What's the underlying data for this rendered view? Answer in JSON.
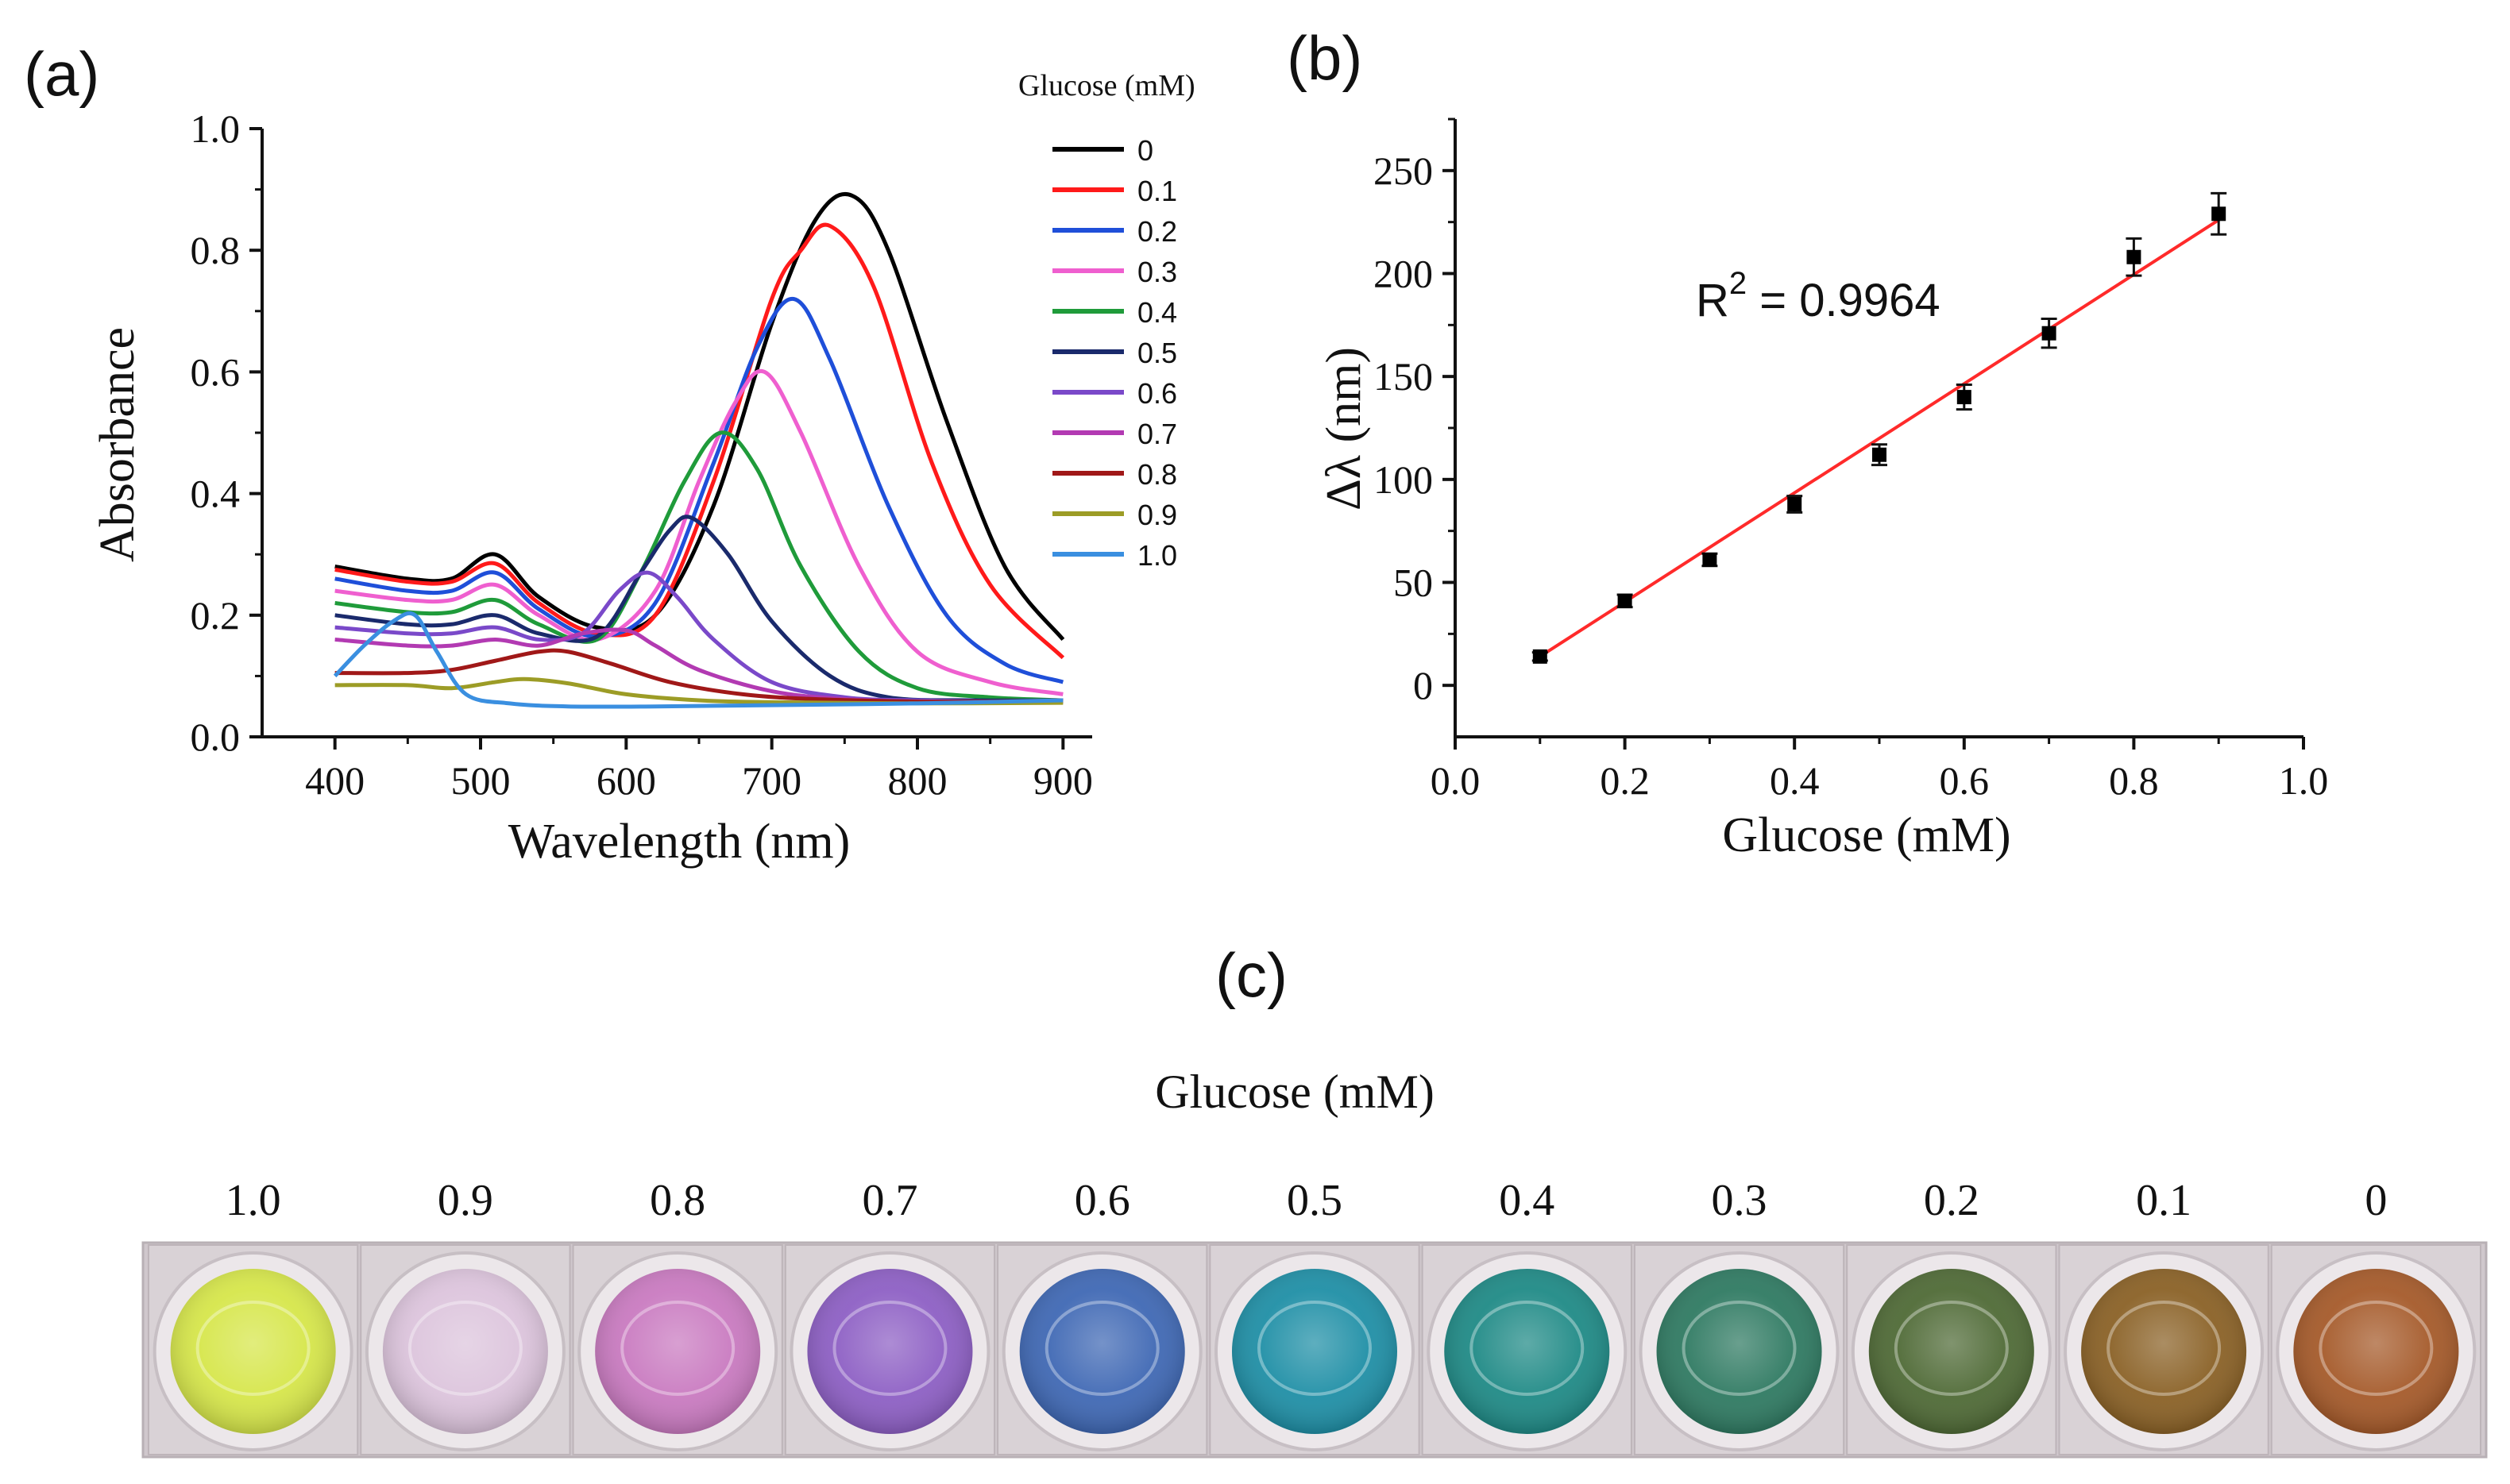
{
  "panel_labels": {
    "a": "(a)",
    "b": "(b)",
    "c": "(c)"
  },
  "chart_data": [
    {
      "type": "line",
      "title": "",
      "xlabel": "Wavelength (nm)",
      "ylabel": "Absorbance",
      "xlim": [
        350,
        920
      ],
      "ylim": [
        0,
        1.0
      ],
      "xticks": [
        400,
        500,
        600,
        700,
        800,
        900
      ],
      "yticks": [
        0.0,
        0.2,
        0.4,
        0.6,
        0.8,
        1.0
      ],
      "xtick_labels": [
        "400",
        "500",
        "600",
        "700",
        "800",
        "900"
      ],
      "ytick_labels": [
        "0.0",
        "0.2",
        "0.4",
        "0.6",
        "0.8",
        "1.0"
      ],
      "legend_title": "Glucose (mM)",
      "legend_position": "top-right",
      "grid": false,
      "series": [
        {
          "name": "0",
          "color": "#000000",
          "x": [
            400,
            450,
            480,
            510,
            540,
            580,
            620,
            660,
            700,
            730,
            755,
            780,
            820,
            860,
            900
          ],
          "y": [
            0.28,
            0.26,
            0.26,
            0.3,
            0.23,
            0.18,
            0.2,
            0.38,
            0.68,
            0.85,
            0.89,
            0.8,
            0.52,
            0.28,
            0.16
          ]
        },
        {
          "name": "0.1",
          "color": "#ff1a1a",
          "x": [
            400,
            450,
            480,
            510,
            540,
            580,
            620,
            660,
            700,
            720,
            740,
            770,
            810,
            850,
            900
          ],
          "y": [
            0.275,
            0.255,
            0.255,
            0.285,
            0.22,
            0.17,
            0.2,
            0.42,
            0.72,
            0.8,
            0.84,
            0.74,
            0.45,
            0.25,
            0.13
          ]
        },
        {
          "name": "0.2",
          "color": "#1f4fd9",
          "x": [
            400,
            450,
            480,
            510,
            540,
            580,
            620,
            660,
            690,
            715,
            740,
            780,
            820,
            860,
            900
          ],
          "y": [
            0.26,
            0.24,
            0.24,
            0.27,
            0.21,
            0.165,
            0.22,
            0.45,
            0.64,
            0.72,
            0.62,
            0.38,
            0.2,
            0.12,
            0.09
          ]
        },
        {
          "name": "0.3",
          "color": "#ef5fcf",
          "x": [
            400,
            450,
            480,
            510,
            540,
            580,
            620,
            650,
            675,
            695,
            720,
            760,
            800,
            850,
            900
          ],
          "y": [
            0.24,
            0.225,
            0.225,
            0.25,
            0.2,
            0.16,
            0.24,
            0.42,
            0.55,
            0.6,
            0.5,
            0.28,
            0.14,
            0.09,
            0.07
          ]
        },
        {
          "name": "0.4",
          "color": "#1f9b3a",
          "x": [
            400,
            450,
            480,
            510,
            540,
            580,
            610,
            640,
            665,
            690,
            720,
            760,
            800,
            850,
            900
          ],
          "y": [
            0.22,
            0.205,
            0.205,
            0.225,
            0.185,
            0.16,
            0.27,
            0.42,
            0.5,
            0.44,
            0.28,
            0.14,
            0.08,
            0.065,
            0.06
          ]
        },
        {
          "name": "0.5",
          "color": "#1a2a6c",
          "x": [
            400,
            450,
            480,
            510,
            540,
            580,
            610,
            630,
            645,
            670,
            700,
            740,
            780,
            840,
            900
          ],
          "y": [
            0.2,
            0.185,
            0.185,
            0.2,
            0.17,
            0.165,
            0.27,
            0.34,
            0.36,
            0.3,
            0.19,
            0.1,
            0.065,
            0.06,
            0.06
          ]
        },
        {
          "name": "0.6",
          "color": "#7a49c9",
          "x": [
            400,
            450,
            480,
            510,
            540,
            570,
            595,
            615,
            635,
            660,
            700,
            750,
            800,
            850,
            900
          ],
          "y": [
            0.18,
            0.17,
            0.17,
            0.18,
            0.16,
            0.17,
            0.24,
            0.27,
            0.23,
            0.16,
            0.09,
            0.065,
            0.06,
            0.058,
            0.058
          ]
        },
        {
          "name": "0.7",
          "color": "#b23ab2",
          "x": [
            400,
            450,
            480,
            510,
            540,
            570,
            600,
            620,
            650,
            700,
            750,
            800,
            850,
            900
          ],
          "y": [
            0.16,
            0.15,
            0.15,
            0.16,
            0.15,
            0.17,
            0.175,
            0.15,
            0.11,
            0.075,
            0.062,
            0.058,
            0.058,
            0.058
          ]
        },
        {
          "name": "0.8",
          "color": "#a01818",
          "x": [
            400,
            450,
            480,
            510,
            540,
            560,
            590,
            630,
            680,
            730,
            800,
            850,
            900
          ],
          "y": [
            0.105,
            0.105,
            0.11,
            0.125,
            0.14,
            0.14,
            0.12,
            0.09,
            0.07,
            0.062,
            0.058,
            0.058,
            0.06
          ]
        },
        {
          "name": "0.9",
          "color": "#9c9c26",
          "x": [
            400,
            450,
            480,
            510,
            530,
            560,
            600,
            650,
            700,
            800,
            900
          ],
          "y": [
            0.085,
            0.085,
            0.08,
            0.09,
            0.095,
            0.088,
            0.07,
            0.06,
            0.057,
            0.055,
            0.056
          ]
        },
        {
          "name": "1.0",
          "color": "#3a8fe0",
          "x": [
            400,
            420,
            440,
            455,
            470,
            490,
            520,
            560,
            620,
            700,
            800,
            900
          ],
          "y": [
            0.1,
            0.15,
            0.19,
            0.2,
            0.14,
            0.07,
            0.055,
            0.05,
            0.05,
            0.052,
            0.055,
            0.06
          ]
        }
      ]
    },
    {
      "type": "scatter",
      "title": "",
      "xlabel": "Glucose (mM)",
      "ylabel": "Δλ (nm)",
      "xlim": [
        0.0,
        1.0
      ],
      "ylim": [
        -25,
        275
      ],
      "xticks": [
        0.0,
        0.2,
        0.4,
        0.6,
        0.8,
        1.0
      ],
      "yticks": [
        0,
        50,
        100,
        150,
        200,
        250
      ],
      "xtick_labels": [
        "0.0",
        "0.2",
        "0.4",
        "0.6",
        "0.8",
        "1.0"
      ],
      "ytick_labels": [
        "0",
        "50",
        "100",
        "150",
        "200",
        "250"
      ],
      "annotation": {
        "base": "R",
        "sup": "2",
        "rest": " = 0.9964"
      },
      "grid": false,
      "points": {
        "x": [
          0.1,
          0.2,
          0.3,
          0.4,
          0.5,
          0.6,
          0.7,
          0.8,
          0.9
        ],
        "y": [
          14,
          41,
          61,
          88,
          112,
          140,
          171,
          208,
          229
        ],
        "err": [
          2,
          3,
          3,
          4,
          5,
          6,
          7,
          9,
          10
        ]
      },
      "fit": {
        "x": [
          0.1,
          0.9
        ],
        "y": [
          14,
          226
        ],
        "color": "#ff2a2a"
      },
      "marker_color": "#000000"
    }
  ],
  "photo": {
    "title": "Glucose (mM)",
    "wells": [
      {
        "label": "1.0",
        "color": "#d6e64a"
      },
      {
        "label": "0.9",
        "color": "#dcc4dc"
      },
      {
        "label": "0.8",
        "color": "#c97ac0"
      },
      {
        "label": "0.7",
        "color": "#8d5fc4"
      },
      {
        "label": "0.6",
        "color": "#3f68b4"
      },
      {
        "label": "0.5",
        "color": "#1f8fa6"
      },
      {
        "label": "0.4",
        "color": "#1f8a86"
      },
      {
        "label": "0.3",
        "color": "#2f7a62"
      },
      {
        "label": "0.2",
        "color": "#4f6a36"
      },
      {
        "label": "0.1",
        "color": "#8a6126"
      },
      {
        "label": "0",
        "color": "#a55a2a"
      }
    ]
  }
}
